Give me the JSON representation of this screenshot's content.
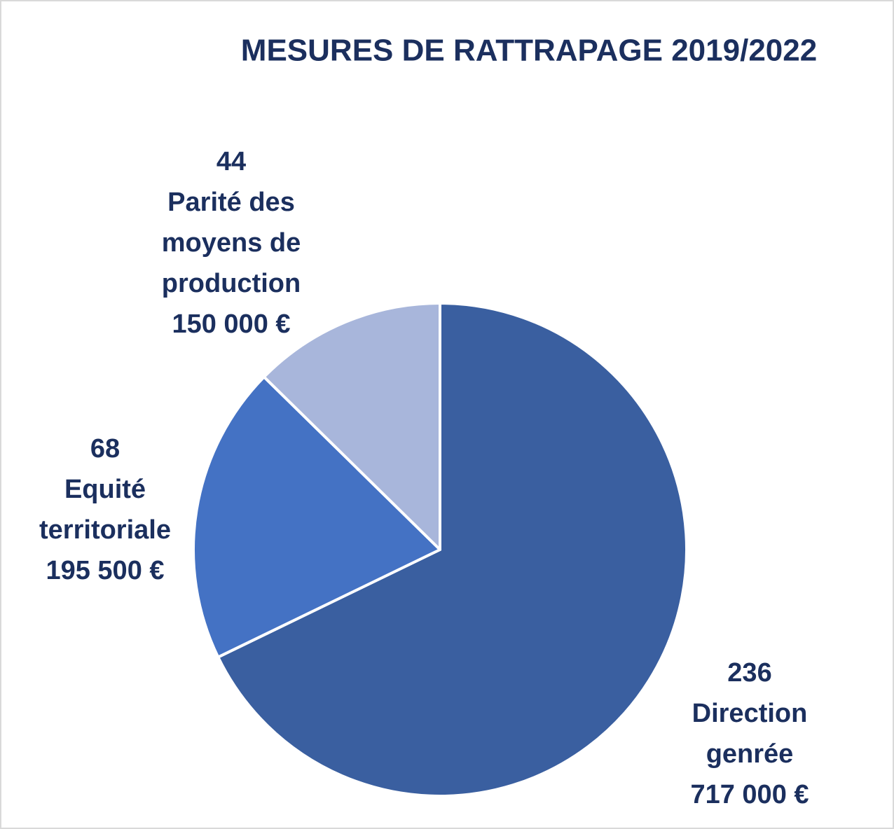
{
  "chart_data": {
    "type": "pie",
    "title": "MESURES DE RATTRAPAGE 2019/2022",
    "categories": [
      "Direction genrée",
      "Equité territoriale",
      "Parité des moyens de production"
    ],
    "values": [
      236,
      68,
      44
    ],
    "amount_labels": [
      "717 000 €",
      "195 500 €",
      "150 000 €"
    ],
    "colors": [
      "#3a5fa0",
      "#4472c4",
      "#a8b6db"
    ]
  }
}
